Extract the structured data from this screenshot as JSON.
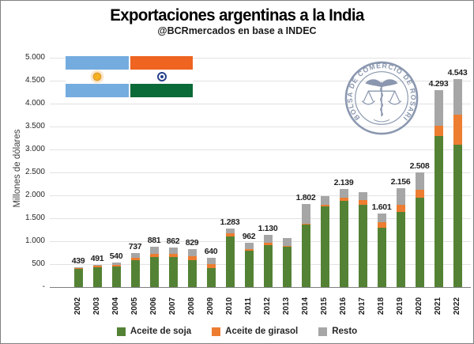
{
  "header": {
    "title": "Exportaciones argentinas a la India",
    "subtitle": "@BCRmercados en base a INDEC"
  },
  "y_axis": {
    "title": "Millones de dólares",
    "tick_labels": [
      "5.000",
      "4.500",
      "4.000",
      "3.500",
      "3.000",
      "2.500",
      "2.000",
      "1.500",
      "1.000",
      "500",
      "-"
    ]
  },
  "logo": {
    "ring_text": "BOLSA DE COMERCIO DE ROSARIO",
    "color": "#8a97af"
  },
  "flags": {
    "argentina": {
      "name": "argentina-flag",
      "blue": "#74acdf",
      "white": "#ffffff",
      "sun": "#f0a818"
    },
    "india": {
      "name": "india-flag",
      "saffron": "#ee6420",
      "white": "#ffffff",
      "green": "#0a6a38",
      "chakra": "#27408b"
    }
  },
  "chart_data": {
    "type": "bar",
    "stacked": true,
    "title": "Exportaciones argentinas a la India",
    "subtitle": "@BCRmercados en base a INDEC",
    "ylabel": "Millones de dólares",
    "ylim": [
      0,
      5000
    ],
    "grid": true,
    "legend_position": "bottom",
    "categories": [
      "2002",
      "2003",
      "2004",
      "2005",
      "2006",
      "2007",
      "2008",
      "2009",
      "2010",
      "2011",
      "2012",
      "2013",
      "2014",
      "2015",
      "2016",
      "2017",
      "2018",
      "2019",
      "2020",
      "2021",
      "2022"
    ],
    "series": [
      {
        "name": "Aceite de soja",
        "color": "#548235",
        "values": [
          395,
          435,
          445,
          580,
          650,
          655,
          585,
          415,
          1110,
          790,
          920,
          890,
          1370,
          1760,
          1880,
          1790,
          1290,
          1640,
          1950,
          3300,
          3100
        ]
      },
      {
        "name": "Aceite de girasol",
        "color": "#ed7d31",
        "values": [
          30,
          41,
          45,
          50,
          70,
          62,
          84,
          85,
          68,
          32,
          40,
          10,
          12,
          40,
          69,
          100,
          116,
          156,
          168,
          210,
          660
        ]
      },
      {
        "name": "Resto",
        "color": "#a6a6a6",
        "values": [
          14,
          15,
          50,
          107,
          161,
          145,
          160,
          140,
          105,
          140,
          170,
          165,
          420,
          180,
          190,
          180,
          195,
          360,
          390,
          783,
          783
        ]
      }
    ],
    "totals": [
      439,
      491,
      540,
      737,
      881,
      862,
      829,
      640,
      1283,
      962,
      1130,
      1065,
      1802,
      1980,
      2139,
      2070,
      1601,
      2156,
      2508,
      4293,
      4543
    ],
    "total_labels": [
      "439",
      "491",
      "540",
      "737",
      "881",
      "862",
      "829",
      "640",
      "1.283",
      "962",
      "1.130",
      "",
      "1.802",
      "",
      "2.139",
      "",
      "1.601",
      "2.156",
      "2.508",
      "4.293",
      "4.543"
    ]
  }
}
